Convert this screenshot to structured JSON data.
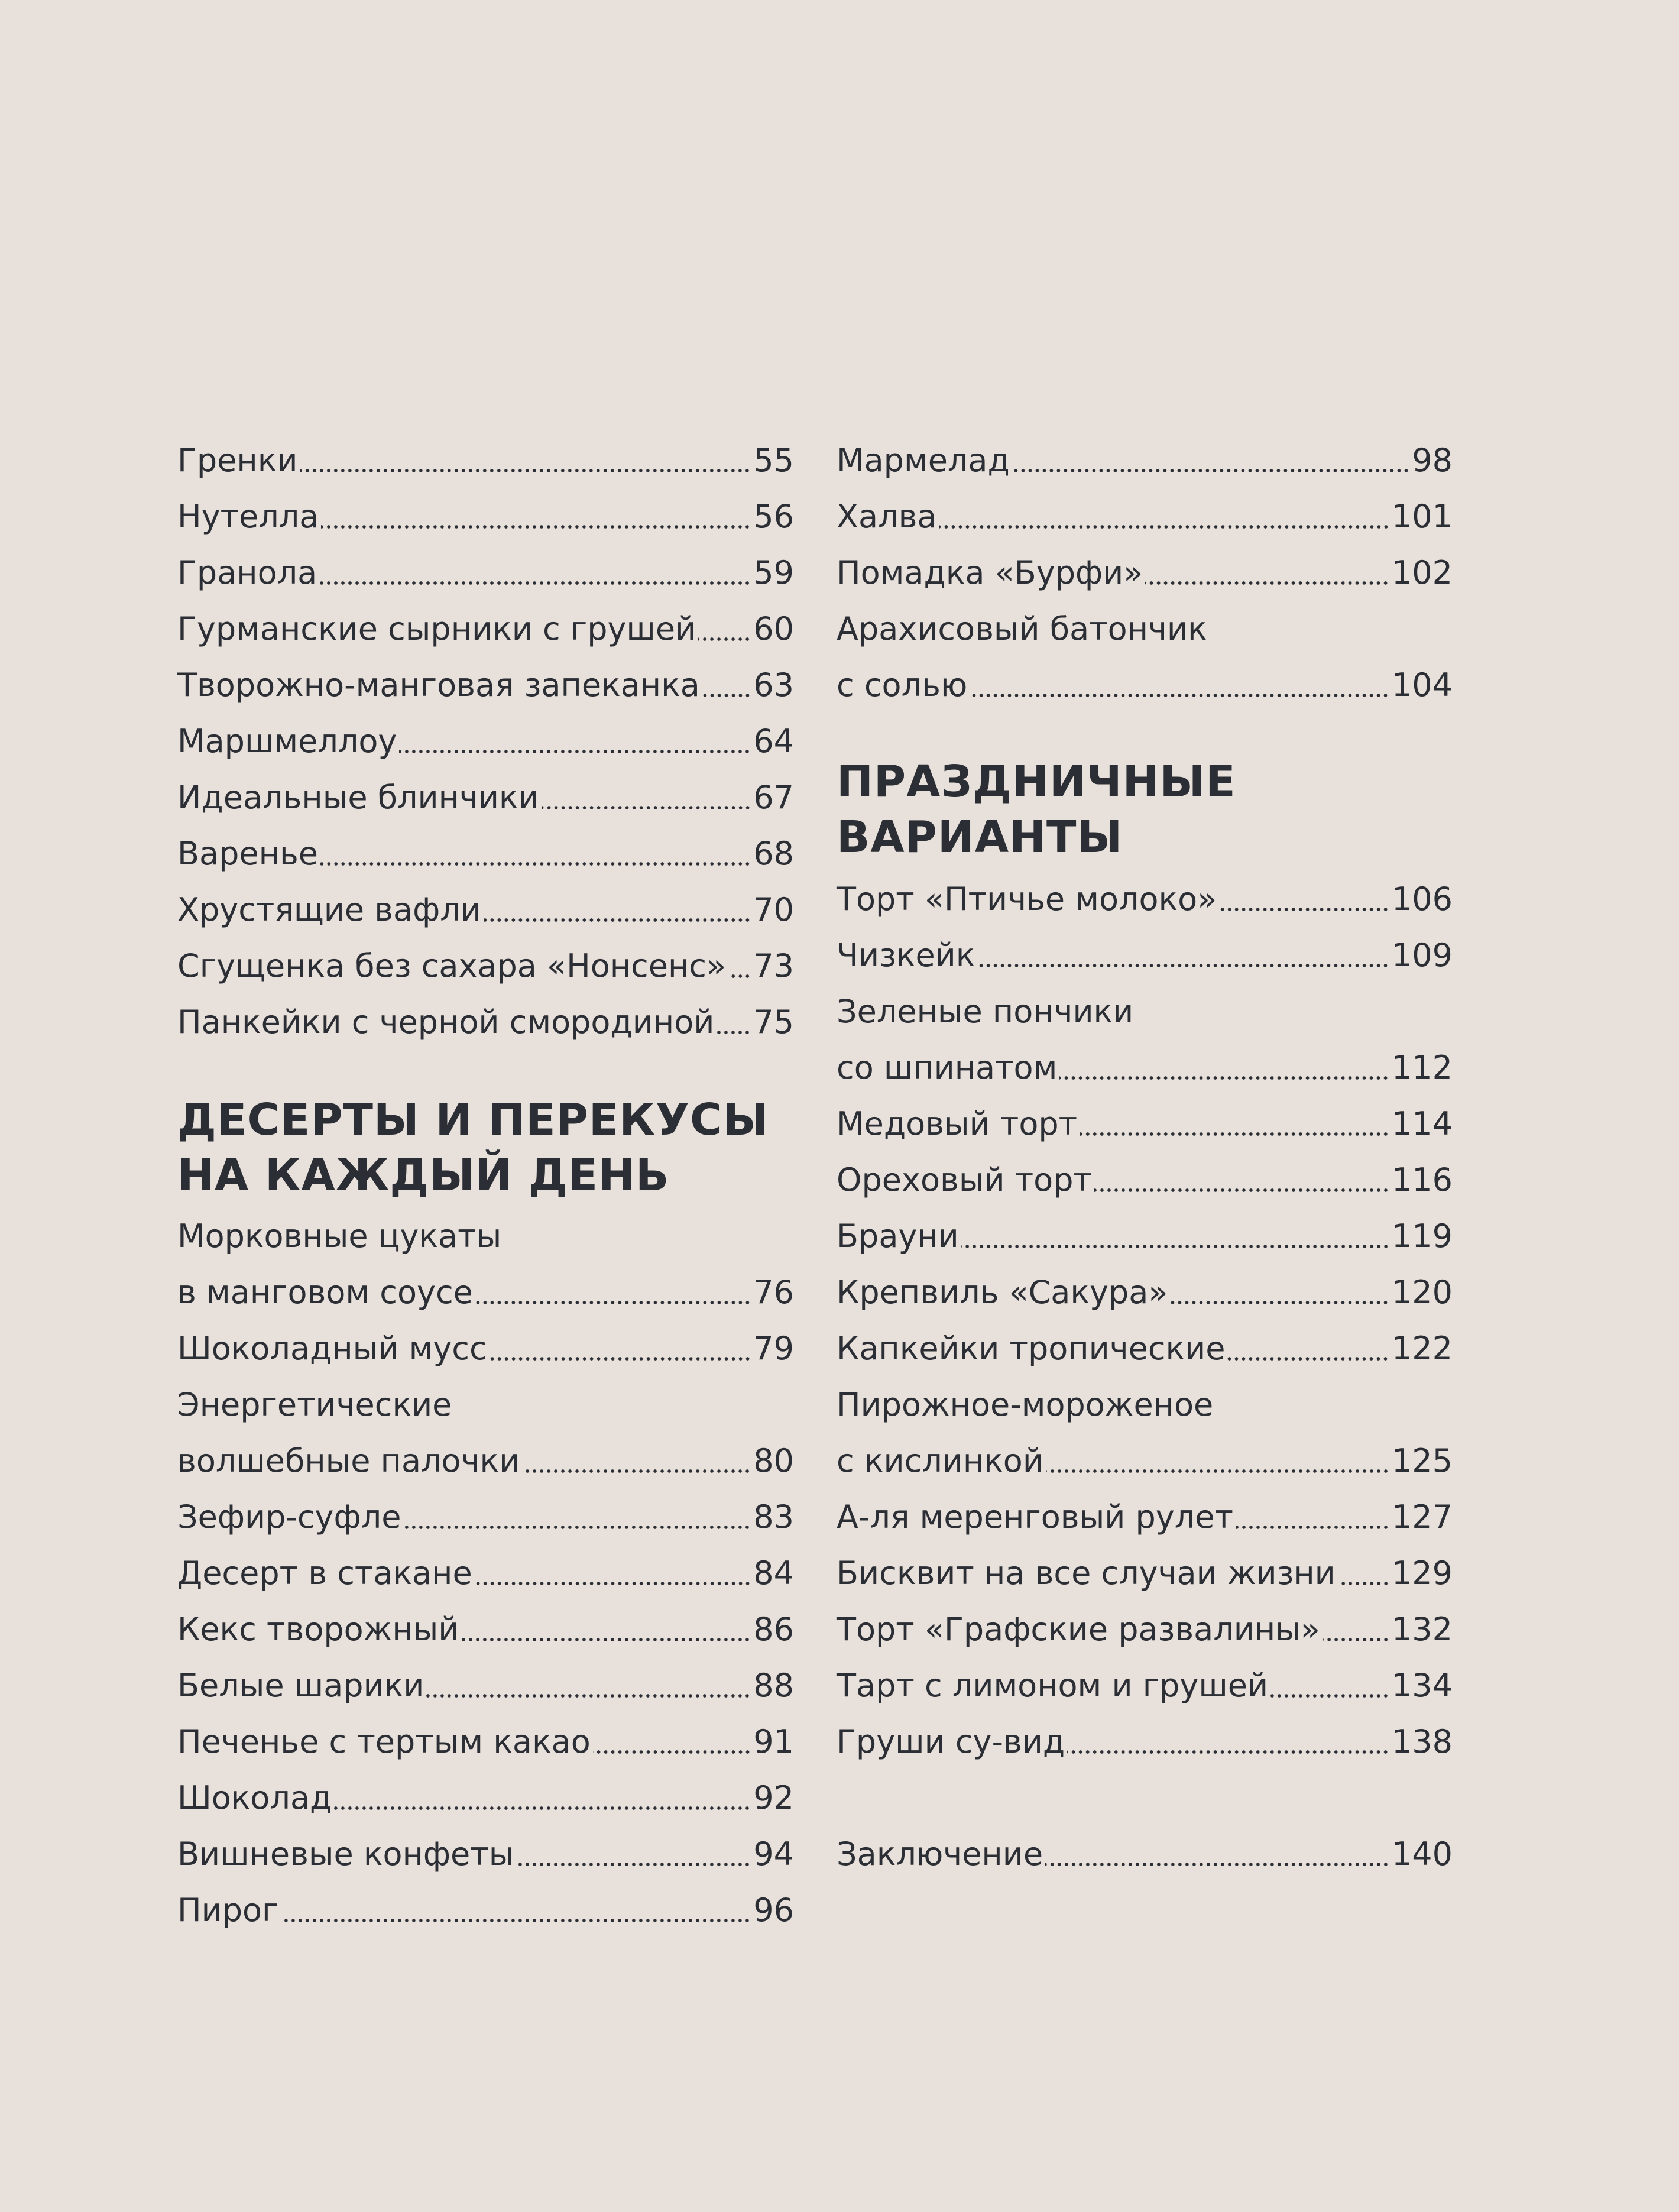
{
  "left_top": [
    {
      "title": "Гренки",
      "page": "55"
    },
    {
      "title": "Нутелла",
      "page": "56"
    },
    {
      "title": "Гранола",
      "page": "59"
    },
    {
      "title": "Гурманские сырники с грушей",
      "page": "60"
    },
    {
      "title": "Творожно-манговая запеканка",
      "page": "63"
    },
    {
      "title": "Маршмеллоу",
      "page": "64"
    },
    {
      "title": "Идеальные блинчики",
      "page": "67"
    },
    {
      "title": "Варенье",
      "page": "68"
    },
    {
      "title": "Хрустящие вафли",
      "page": "70"
    },
    {
      "title": "Сгущенка без сахара «Нонсенс»",
      "page": "73"
    },
    {
      "title": "Панкейки с черной смородиной",
      "page": "75"
    }
  ],
  "left_section": {
    "heading": [
      "ДЕСЕРТЫ И ПЕРЕКУСЫ",
      "НА КАЖДЫЙ ДЕНЬ"
    ],
    "items": [
      {
        "title": "Морковные цукаты"
      },
      {
        "title": "в манговом соусе",
        "page": "76"
      },
      {
        "title": "Шоколадный мусс",
        "page": "79"
      },
      {
        "title": "Энергетические"
      },
      {
        "title": "волшебные палочки",
        "page": "80"
      },
      {
        "title": "Зефир-суфле",
        "page": "83"
      },
      {
        "title": "Десерт в стакане",
        "page": "84"
      },
      {
        "title": "Кекс творожный",
        "page": "86"
      },
      {
        "title": "Белые шарики",
        "page": "88"
      },
      {
        "title": "Печенье с тертым какао",
        "page": "91"
      },
      {
        "title": "Шоколад",
        "page": "92"
      },
      {
        "title": "Вишневые конфеты",
        "page": "94"
      },
      {
        "title": "Пирог",
        "page": "96"
      }
    ]
  },
  "right_top": [
    {
      "title": "Мармелад",
      "page": "98"
    },
    {
      "title": "Халва",
      "page": "101"
    },
    {
      "title": "Помадка «Бурфи»",
      "page": "102"
    },
    {
      "title": "Арахисовый батончик"
    },
    {
      "title": "с солью",
      "page": "104"
    }
  ],
  "right_section": {
    "heading": [
      "ПРАЗДНИЧНЫЕ",
      "ВАРИАНТЫ"
    ],
    "items": [
      {
        "title": "Торт «Птичье молоко»",
        "page": "106"
      },
      {
        "title": "Чизкейк",
        "page": "109"
      },
      {
        "title": "Зеленые пончики"
      },
      {
        "title": "со шпинатом",
        "page": "112"
      },
      {
        "title": "Медовый торт",
        "page": "114"
      },
      {
        "title": "Ореховый торт",
        "page": "116"
      },
      {
        "title": "Брауни",
        "page": "119"
      },
      {
        "title": "Крепвиль «Сакура»",
        "page": "120"
      },
      {
        "title": "Капкейки тропические",
        "page": "122"
      },
      {
        "title": "Пирожное-мороженое"
      },
      {
        "title": "с кислинкой",
        "page": "125"
      },
      {
        "title": "А-ля меренговый рулет",
        "page": "127"
      },
      {
        "title": "Бисквит на все случаи жизни",
        "page": "129"
      },
      {
        "title": "Торт «Графские развалины»",
        "page": "132"
      },
      {
        "title": "Тарт с лимоном и грушей",
        "page": "134"
      },
      {
        "title": "Груши су-вид",
        "page": "138"
      }
    ]
  },
  "conclusion": [
    {
      "title": "Заключение",
      "page": "140"
    }
  ],
  "colors": {
    "background": "#e8e0da",
    "text": "#2b2e34"
  }
}
